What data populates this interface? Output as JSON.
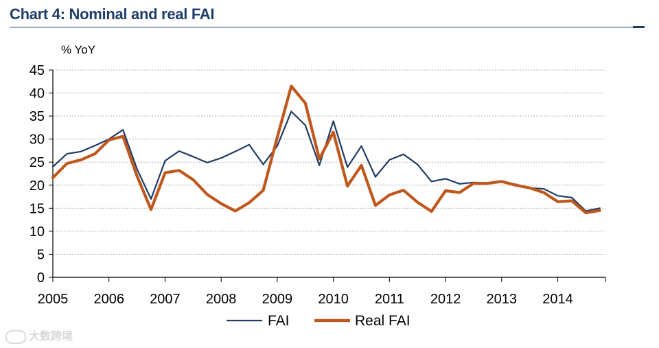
{
  "header": {
    "title": "Chart 4: Nominal and real FAI"
  },
  "watermark": {
    "text": "大数跨境"
  },
  "colors": {
    "fai": "#1f3a63",
    "real_fai": "#c0581e",
    "title": "#1f3d6b",
    "grid": "#b0b0b0"
  },
  "chart_data": {
    "type": "line",
    "title": "Chart 4: Nominal and real FAI",
    "ylabel": "% YoY",
    "xlabel": "",
    "ylim": [
      0,
      45
    ],
    "xlim": [
      2005,
      2014.85
    ],
    "y_ticks": [
      0,
      5,
      10,
      15,
      20,
      25,
      30,
      35,
      40,
      45
    ],
    "x_ticks": [
      "2005",
      "2006",
      "2007",
      "2008",
      "2009",
      "2010",
      "2011",
      "2012",
      "2013",
      "2014"
    ],
    "grid": "horizontal dotted",
    "legend": {
      "position": "bottom-center",
      "entries": [
        "FAI",
        "Real FAI"
      ]
    },
    "x": [
      2005.0,
      2005.25,
      2005.5,
      2005.75,
      2006.0,
      2006.25,
      2006.5,
      2006.75,
      2007.0,
      2007.25,
      2007.5,
      2007.75,
      2008.0,
      2008.25,
      2008.5,
      2008.75,
      2009.0,
      2009.25,
      2009.5,
      2009.75,
      2010.0,
      2010.25,
      2010.5,
      2010.75,
      2011.0,
      2011.25,
      2011.5,
      2011.75,
      2012.0,
      2012.25,
      2012.5,
      2012.75,
      2013.0,
      2013.25,
      2013.5,
      2013.75,
      2014.0,
      2014.25,
      2014.5,
      2014.75
    ],
    "series": [
      {
        "name": "FAI",
        "values": [
          24,
          26.8,
          27.3,
          28.6,
          30,
          32,
          23.5,
          17,
          25.3,
          27.4,
          26.2,
          24.9,
          25.9,
          27.3,
          28.8,
          24.5,
          28.5,
          36,
          33,
          24.3,
          33.9,
          23.9,
          28.5,
          21.8,
          25.5,
          26.7,
          24.5,
          20.8,
          21.4,
          20.3,
          20.6,
          20.5,
          20.7,
          20.2,
          19.4,
          19.2,
          17.7,
          17.3,
          14.4,
          15
        ]
      },
      {
        "name": "Real FAI",
        "values": [
          21.6,
          24.7,
          25.5,
          26.8,
          29.8,
          30.6,
          22,
          14.7,
          22.7,
          23.2,
          21.2,
          18,
          16,
          14.4,
          16.2,
          18.9,
          30.4,
          41.5,
          37.8,
          25.7,
          31.5,
          19.8,
          24.3,
          15.6,
          17.9,
          18.9,
          16.3,
          14.3,
          18.8,
          18.4,
          20.4,
          20.4,
          20.8,
          20,
          19.4,
          18.4,
          16.4,
          16.6,
          14,
          14.5
        ]
      }
    ]
  }
}
